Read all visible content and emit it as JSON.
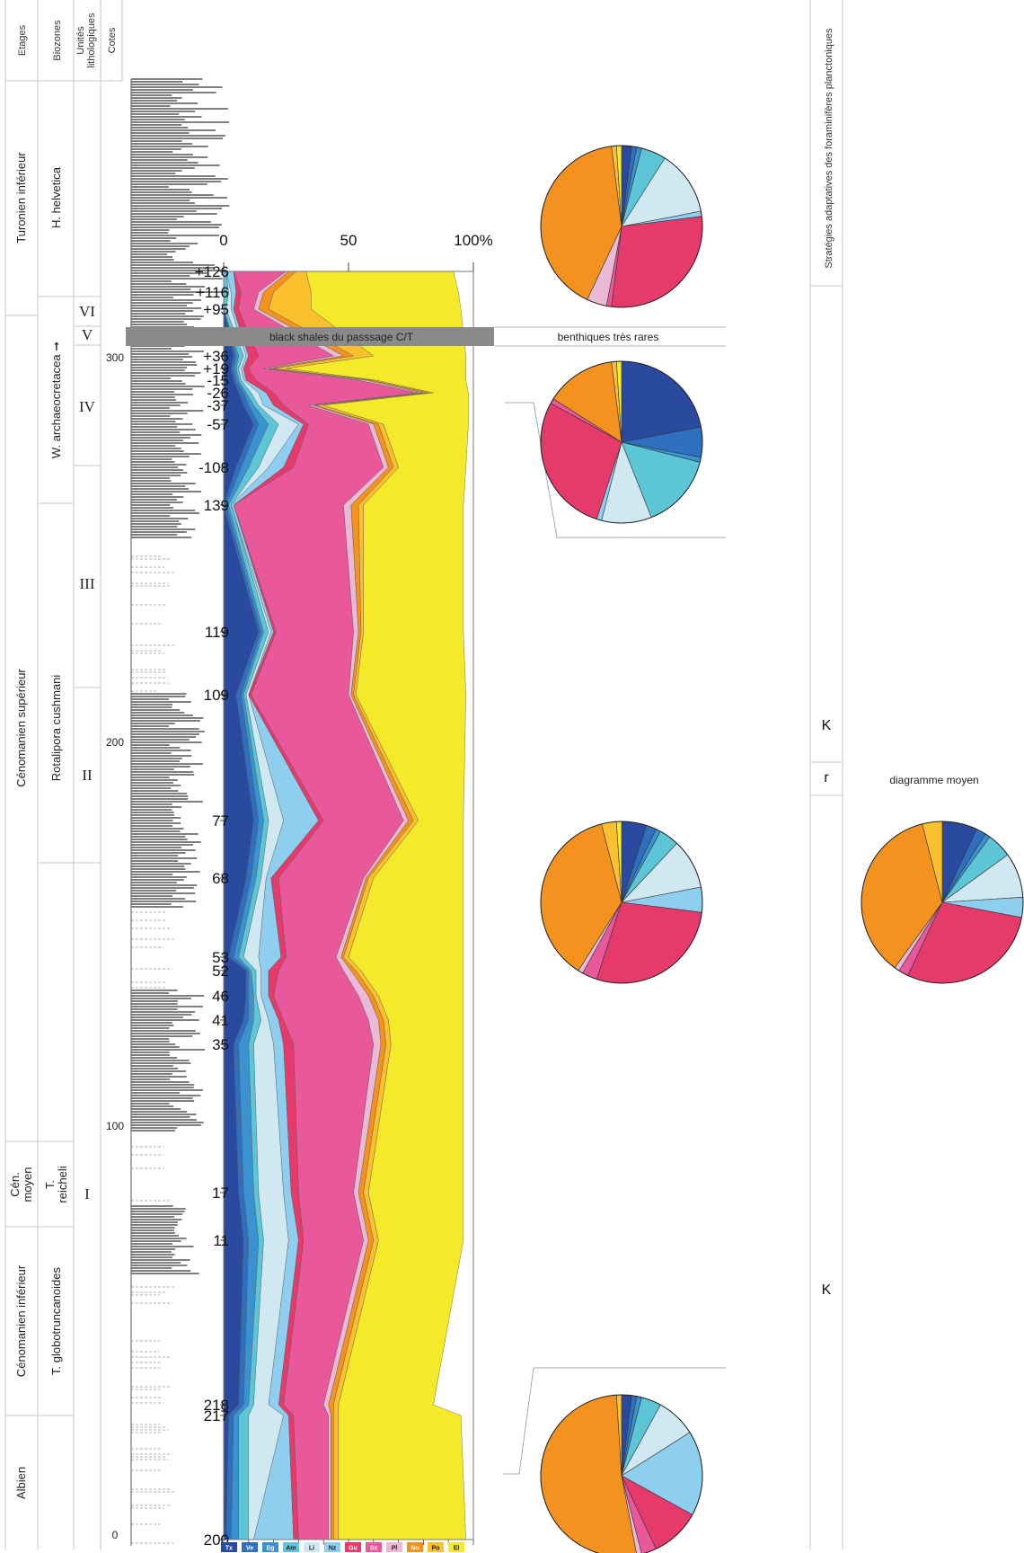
{
  "headers": {
    "etages": "Etages",
    "biozones": "Biozones",
    "unites_l1": "Unités",
    "unites_l2": "lithologiques",
    "cotes": "Cotes",
    "strategies": "Stratégies adaptatives des foraminifères planctoniques"
  },
  "stages": [
    {
      "label": "Turonien inférieur",
      "lines": [
        "Turonien inférieur"
      ]
    },
    {
      "label": "Cénomanien supérieur",
      "lines": [
        "Cénomanien supérieur"
      ]
    },
    {
      "label": "Cén. moyen",
      "lines": [
        "Cén.",
        "moyen"
      ]
    },
    {
      "label": "Cénomanien inférieur",
      "lines": [
        "Cénomanien inférieur"
      ]
    },
    {
      "label": "Albien",
      "lines": [
        "Albien"
      ]
    }
  ],
  "biozones": [
    {
      "label": "H. helvetica",
      "lines": [
        "H. helvetica"
      ]
    },
    {
      "label": "W. archaeocretacea ➞",
      "lines": [
        "W. archaeocretacea ➞"
      ]
    },
    {
      "label": "Rotalipora cushmani",
      "lines": [
        "Rotalipora cushmani"
      ]
    },
    {
      "label": "T. reicheli",
      "lines": [
        "T.",
        "reicheli"
      ]
    },
    {
      "label": "T. globotruncanoides",
      "lines": [
        "T. globotruncanoides"
      ]
    }
  ],
  "lith_units": [
    "VI",
    "V",
    "IV",
    "III",
    "II",
    "I"
  ],
  "cotes_labels": [
    "300",
    "200",
    "100",
    "0"
  ],
  "black_shales": "black shales du passsage C/T",
  "benthiques": "benthiques très rares",
  "diagramme_moyen": "diagramme moyen",
  "strategy_zones": [
    "K",
    "r",
    "K"
  ],
  "colors": {
    "Tx": "#2a4aa0",
    "Ve": "#2f6fc0",
    "Eg": "#3a93d0",
    "Am": "#5cc5d6",
    "Li": "#cfe8f2",
    "Nz": "#8ecff0",
    "Gu": "#e63a6a",
    "Sx": "#e8589a",
    "Pl": "#e9b9d6",
    "No": "#f3921f",
    "Po": "#fbc02d",
    "El": "#f4ea2a"
  },
  "chart_data": [
    {
      "type": "area",
      "title": "",
      "xlabel": "",
      "ylabel": "",
      "xlim": [
        0,
        100
      ],
      "x_ticks": [
        "0",
        "50",
        "100%"
      ],
      "series_order": [
        "Tx",
        "Ve",
        "Eg",
        "Am",
        "Li",
        "Nz",
        "Gu",
        "Sx",
        "Pl",
        "No",
        "Po",
        "El"
      ],
      "samples": [
        "+126",
        "+116",
        "+95",
        "+36",
        "+19",
        "-15",
        "-26",
        "-37",
        "-57",
        "-108",
        "139",
        "119",
        "109",
        "77",
        "68",
        "53",
        "52",
        "46",
        "41",
        "35",
        "17",
        "11",
        "218",
        "217",
        "200"
      ],
      "cumulative_percent": [
        [
          1,
          1,
          1,
          4,
          4,
          4,
          4,
          4,
          14,
          14,
          14,
          14,
          14,
          14,
          91,
          91,
          91,
          91,
          91,
          91,
          100
        ],
        [
          2,
          2,
          2,
          2,
          2,
          2,
          6,
          6,
          16,
          16,
          16,
          16,
          16,
          16,
          92,
          92,
          92,
          92,
          92,
          92,
          100
        ]
      ],
      "cumulative_limits": [
        [
          0,
          0,
          0,
          1,
          1,
          4,
          4,
          25,
          26,
          29,
          33,
          92,
          98,
          100
        ],
        [
          0,
          0,
          0,
          2,
          3,
          5,
          7,
          14,
          16,
          20,
          35,
          94,
          98,
          100
        ],
        [
          0,
          0,
          0,
          1,
          3,
          4,
          6,
          12,
          14,
          18,
          35,
          95,
          98,
          100
        ],
        [
          4,
          5,
          6,
          8,
          9,
          10,
          14,
          44,
          48,
          52,
          60,
          97,
          98,
          100
        ],
        [
          3,
          4,
          5,
          6,
          7,
          8,
          10,
          16,
          18,
          20,
          25,
          97,
          99,
          100
        ],
        [
          4,
          5,
          6,
          7,
          8,
          9,
          13,
          54,
          57,
          59,
          61,
          97,
          99,
          100
        ],
        [
          6,
          8,
          9,
          11,
          14,
          17,
          20,
          78,
          80,
          82,
          84,
          98,
          99,
          100
        ],
        [
          8,
          10,
          12,
          14,
          16,
          20,
          24,
          34,
          36,
          37,
          40,
          98,
          99,
          100
        ],
        [
          12,
          14,
          18,
          22,
          30,
          32,
          34,
          58,
          60,
          62,
          64,
          98,
          99,
          100
        ],
        [
          5,
          7,
          10,
          14,
          18,
          24,
          28,
          64,
          66,
          68,
          70,
          97,
          99,
          100
        ],
        [
          0,
          1,
          2,
          3,
          3,
          4,
          4,
          48,
          51,
          54,
          56,
          96,
          98,
          100
        ],
        [
          14,
          15,
          16,
          18,
          19,
          20,
          21,
          52,
          54,
          55,
          56,
          96,
          98,
          100
        ],
        [
          5,
          7,
          8,
          9,
          10,
          10,
          11,
          50,
          51,
          52,
          53,
          97,
          98,
          100
        ],
        [
          12,
          14,
          16,
          18,
          24,
          38,
          40,
          72,
          74,
          76,
          78,
          96,
          98,
          100
        ],
        [
          9,
          11,
          13,
          15,
          17,
          19,
          22,
          56,
          57,
          58,
          60,
          96,
          98,
          100
        ],
        [
          2,
          4,
          6,
          8,
          14,
          23,
          25,
          45,
          47,
          48,
          50,
          96,
          98,
          100
        ],
        [
          9,
          10,
          11,
          13,
          15,
          18,
          22,
          48,
          51,
          53,
          55,
          96,
          98,
          100
        ],
        [
          9,
          10,
          12,
          13,
          15,
          18,
          20,
          54,
          58,
          60,
          62,
          96,
          98,
          100
        ],
        [
          8,
          10,
          12,
          15,
          18,
          22,
          24,
          58,
          62,
          64,
          66,
          96,
          98,
          100
        ],
        [
          4,
          6,
          10,
          12,
          20,
          24,
          28,
          60,
          63,
          65,
          67,
          96,
          98,
          100
        ],
        [
          6,
          8,
          12,
          14,
          24,
          27,
          30,
          52,
          54,
          56,
          58,
          96,
          98,
          100
        ],
        [
          8,
          10,
          14,
          16,
          26,
          30,
          32,
          56,
          58,
          60,
          62,
          96,
          98,
          100
        ],
        [
          6,
          8,
          10,
          12,
          18,
          22,
          24,
          40,
          42,
          44,
          46,
          84,
          97,
          100
        ],
        [
          2,
          4,
          6,
          10,
          24,
          26,
          28,
          42,
          43,
          44,
          46,
          95,
          98,
          100
        ],
        [
          1,
          3,
          6,
          10,
          12,
          28,
          30,
          42,
          43,
          44,
          46,
          97,
          99,
          100
        ]
      ]
    },
    {
      "type": "pie",
      "title": "",
      "slices": {
        "Tx": 2,
        "Ve": 1,
        "Eg": 1,
        "Am": 5,
        "Li": 13,
        "Nz": 1,
        "Gu": 29,
        "Sx": 1,
        "Pl": 4,
        "No": 41,
        "Po": 1,
        "El": 1
      }
    },
    {
      "type": "pie",
      "title": "",
      "slices": {
        "Tx": 22,
        "Ve": 6,
        "Eg": 1,
        "Am": 15,
        "Li": 10,
        "Nz": 1,
        "Gu": 28,
        "Sx": 1,
        "Pl": 0,
        "No": 14,
        "Po": 1,
        "El": 1
      }
    },
    {
      "type": "pie",
      "title": "",
      "slices": {
        "Tx": 5,
        "Ve": 2,
        "Eg": 1,
        "Am": 4,
        "Li": 10,
        "Nz": 5,
        "Gu": 28,
        "Sx": 3,
        "Pl": 1,
        "No": 37,
        "Po": 3,
        "El": 1
      }
    },
    {
      "type": "pie",
      "title": "diagramme moyen",
      "slices": {
        "Tx": 7,
        "Ve": 2,
        "Eg": 1,
        "Am": 5,
        "Li": 9,
        "Nz": 4,
        "Gu": 29,
        "Sx": 2,
        "Pl": 1,
        "No": 36,
        "Po": 4,
        "El": 0
      }
    },
    {
      "type": "pie",
      "title": "",
      "slices": {
        "Tx": 2,
        "Ve": 1,
        "Eg": 1,
        "Am": 4,
        "Li": 8,
        "Nz": 17,
        "Gu": 10,
        "Sx": 3,
        "Pl": 1,
        "No": 52,
        "Po": 1,
        "El": 0
      }
    }
  ]
}
